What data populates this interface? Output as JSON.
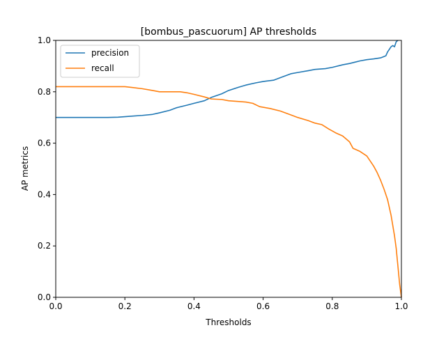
{
  "chart_data": {
    "type": "line",
    "title": "[bombus_pascuorum] AP thresholds",
    "xlabel": "Thresholds",
    "ylabel": "AP metrics",
    "xlim": [
      0.0,
      1.0
    ],
    "ylim": [
      0.0,
      1.0
    ],
    "x_ticks": [
      "0.0",
      "0.2",
      "0.4",
      "0.6",
      "0.8",
      "1.0"
    ],
    "y_ticks": [
      "0.0",
      "0.2",
      "0.4",
      "0.6",
      "0.8",
      "1.0"
    ],
    "grid": false,
    "legend": "top-left",
    "series": [
      {
        "name": "precision",
        "color": "#1f77b4",
        "points": [
          [
            0.0,
            0.7
          ],
          [
            0.05,
            0.7
          ],
          [
            0.1,
            0.7
          ],
          [
            0.15,
            0.7
          ],
          [
            0.18,
            0.701
          ],
          [
            0.2,
            0.703
          ],
          [
            0.22,
            0.705
          ],
          [
            0.25,
            0.708
          ],
          [
            0.28,
            0.712
          ],
          [
            0.3,
            0.718
          ],
          [
            0.33,
            0.728
          ],
          [
            0.35,
            0.738
          ],
          [
            0.38,
            0.748
          ],
          [
            0.4,
            0.755
          ],
          [
            0.43,
            0.765
          ],
          [
            0.45,
            0.778
          ],
          [
            0.48,
            0.792
          ],
          [
            0.5,
            0.805
          ],
          [
            0.53,
            0.818
          ],
          [
            0.55,
            0.826
          ],
          [
            0.58,
            0.835
          ],
          [
            0.6,
            0.84
          ],
          [
            0.63,
            0.845
          ],
          [
            0.65,
            0.855
          ],
          [
            0.68,
            0.87
          ],
          [
            0.7,
            0.875
          ],
          [
            0.73,
            0.882
          ],
          [
            0.75,
            0.887
          ],
          [
            0.78,
            0.89
          ],
          [
            0.8,
            0.895
          ],
          [
            0.83,
            0.905
          ],
          [
            0.85,
            0.91
          ],
          [
            0.88,
            0.92
          ],
          [
            0.9,
            0.925
          ],
          [
            0.92,
            0.928
          ],
          [
            0.94,
            0.932
          ],
          [
            0.955,
            0.94
          ],
          [
            0.96,
            0.955
          ],
          [
            0.965,
            0.965
          ],
          [
            0.97,
            0.975
          ],
          [
            0.975,
            0.98
          ],
          [
            0.98,
            0.975
          ],
          [
            0.985,
            0.995
          ],
          [
            0.99,
            1.0
          ]
        ]
      },
      {
        "name": "recall",
        "color": "#ff7f0e",
        "points": [
          [
            0.0,
            0.82
          ],
          [
            0.05,
            0.82
          ],
          [
            0.1,
            0.82
          ],
          [
            0.15,
            0.82
          ],
          [
            0.2,
            0.82
          ],
          [
            0.22,
            0.817
          ],
          [
            0.25,
            0.812
          ],
          [
            0.28,
            0.805
          ],
          [
            0.3,
            0.8
          ],
          [
            0.33,
            0.8
          ],
          [
            0.36,
            0.8
          ],
          [
            0.38,
            0.796
          ],
          [
            0.4,
            0.79
          ],
          [
            0.43,
            0.78
          ],
          [
            0.45,
            0.772
          ],
          [
            0.48,
            0.77
          ],
          [
            0.5,
            0.765
          ],
          [
            0.53,
            0.762
          ],
          [
            0.55,
            0.76
          ],
          [
            0.57,
            0.755
          ],
          [
            0.59,
            0.742
          ],
          [
            0.62,
            0.735
          ],
          [
            0.65,
            0.725
          ],
          [
            0.68,
            0.71
          ],
          [
            0.7,
            0.7
          ],
          [
            0.73,
            0.688
          ],
          [
            0.75,
            0.678
          ],
          [
            0.77,
            0.672
          ],
          [
            0.79,
            0.655
          ],
          [
            0.81,
            0.64
          ],
          [
            0.83,
            0.628
          ],
          [
            0.85,
            0.605
          ],
          [
            0.86,
            0.58
          ],
          [
            0.88,
            0.568
          ],
          [
            0.9,
            0.55
          ],
          [
            0.91,
            0.53
          ],
          [
            0.92,
            0.51
          ],
          [
            0.93,
            0.485
          ],
          [
            0.94,
            0.455
          ],
          [
            0.95,
            0.42
          ],
          [
            0.96,
            0.38
          ],
          [
            0.97,
            0.32
          ],
          [
            0.98,
            0.24
          ],
          [
            0.985,
            0.19
          ],
          [
            0.99,
            0.12
          ],
          [
            0.995,
            0.05
          ],
          [
            1.0,
            0.0
          ]
        ]
      }
    ]
  }
}
